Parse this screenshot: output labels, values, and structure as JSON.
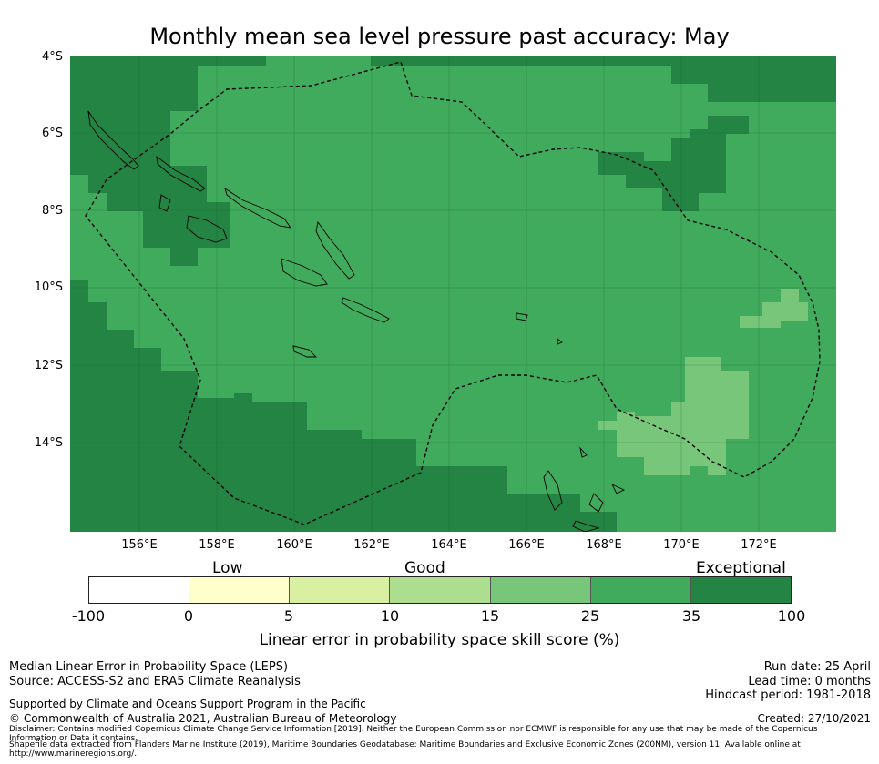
{
  "title": "Monthly mean sea level pressure past accuracy: May",
  "map": {
    "lat_labels": [
      "4°S",
      "6°S",
      "8°S",
      "10°S",
      "12°S",
      "14°S"
    ],
    "lon_labels": [
      "156°E",
      "158°E",
      "160°E",
      "162°E",
      "164°E",
      "166°E",
      "168°E",
      "170°E",
      "172°E"
    ],
    "lat_range": [
      -16.3,
      -4.0
    ],
    "lon_range": [
      154.2,
      174.0
    ],
    "colors": {
      "background": "#41ab5d",
      "exceptional": "#238443",
      "good_high": "#78c679",
      "boundary_line": "#000000"
    }
  },
  "colorbar": {
    "categories": [
      "Low",
      "Good",
      "Exceptional"
    ],
    "ticks": [
      "-100",
      "0",
      "5",
      "10",
      "15",
      "25",
      "35",
      "100"
    ],
    "colors": [
      "#ffffff",
      "#ffffcc",
      "#d9f0a3",
      "#addd8e",
      "#78c679",
      "#41ab5d",
      "#238443"
    ],
    "title": "Linear error in probability space skill score (%)"
  },
  "footer": {
    "method": "Median Linear Error in Probability Space (LEPS)",
    "source": "Source: ACCESS-S2 and ERA5 Climate Reanalysis",
    "run_date": "Run date: 25 April",
    "lead_time": "Lead time: 0 months",
    "hindcast": "Hindcast period: 1981-2018",
    "support": "Supported by Climate and Oceans Support Program in the Pacific",
    "copyright": "© Commonwealth of Australia 2021, Australian Bureau of Meteorology",
    "created": "Created: 27/10/2021",
    "disclaimer": "Disclaimer: Contains modified Copernicus Climate Change Service Information [2019]. Neither the European Commission nor ECMWF is responsible for any use that may be made of the Copernicus Information or Data it contains.",
    "shapefile": "Shapefile data extracted from Flanders Marine Institute (2019), Maritime Boundaries Geodatabase: Maritime Boundaries and Exclusive Economic Zones (200NM), version 11. Available online at http://www.marineregions.org/."
  }
}
